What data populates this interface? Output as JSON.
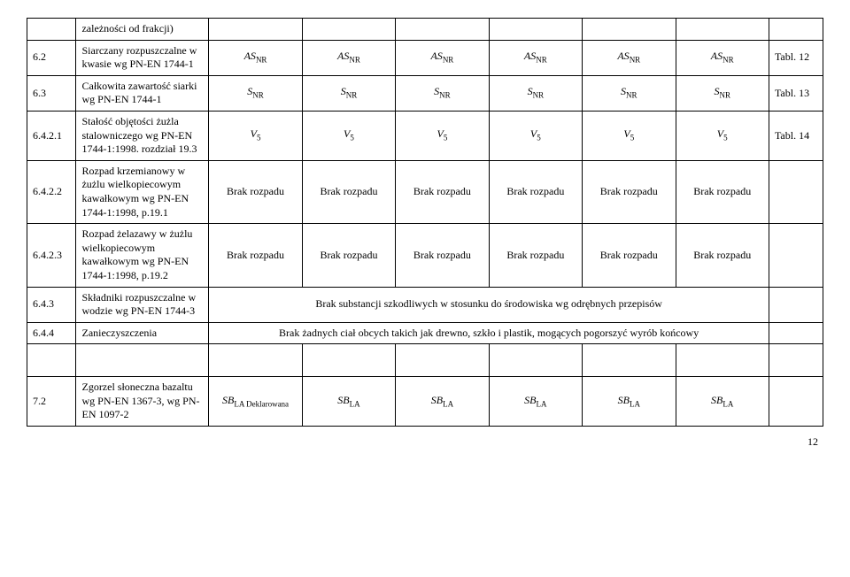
{
  "rows": [
    {
      "num": "",
      "desc": "zależności od frakcji)",
      "vals": [
        "",
        "",
        "",
        "",
        "",
        ""
      ],
      "note": ""
    },
    {
      "num": "6.2",
      "desc": "Siarczany rozpuszczalne w kwasie wg PN-EN 1744-1",
      "vals": [
        "AS_NR",
        "AS_NR",
        "AS_NR",
        "AS_NR",
        "AS_NR",
        "AS_NR"
      ],
      "note": "Tabl. 12"
    },
    {
      "num": "6.3",
      "desc": "Całkowita zawartość siarki wg PN-EN 1744-1",
      "vals": [
        "S_NR",
        "S_NR",
        "S_NR",
        "S_NR",
        "S_NR",
        "S_NR"
      ],
      "note": "Tabl. 13"
    },
    {
      "num": "6.4.2.1",
      "desc": "Stałość objętości żużla stalowniczego wg PN-EN 1744-1:1998. rozdział 19.3",
      "vals": [
        "V_5",
        "V_5",
        "V_5",
        "V_5",
        "V_5",
        "V_5"
      ],
      "note": "Tabl. 14"
    },
    {
      "num": "6.4.2.2",
      "desc": "Rozpad krzemianowy w żużlu wielkopiecowym kawałkowym wg PN-EN 1744-1:1998, p.19.1",
      "vals": [
        "Brak rozpadu",
        "Brak rozpadu",
        "Brak rozpadu",
        "Brak rozpadu",
        "Brak rozpadu",
        "Brak rozpadu"
      ],
      "note": ""
    },
    {
      "num": "6.4.2.3",
      "desc": "Rozpad żelazawy w żużlu wielkopiecowym kawałkowym wg PN-EN 1744-1:1998, p.19.2",
      "vals": [
        "Brak rozpadu",
        "Brak rozpadu",
        "Brak rozpadu",
        "Brak rozpadu",
        "Brak rozpadu",
        "Brak rozpadu"
      ],
      "note": ""
    },
    {
      "num": "6.4.3",
      "desc": "Składniki rozpuszczalne w wodzie wg PN-EN 1744-3",
      "merged": "Brak substancji szkodliwych w stosunku do środowiska wg odrębnych przepisów",
      "note": ""
    },
    {
      "num": "6.4.4",
      "desc": "Zanieczyszczenia",
      "merged": "Brak żadnych ciał obcych takich jak drewno, szkło i plastik, mogących pogorszyć wyrób końcowy",
      "note": ""
    },
    {
      "num": "7.2",
      "desc": "Zgorzel słoneczna bazaltu wg PN-EN 1367-3, wg PN-EN 1097-2",
      "vals": [
        "SB_LA Deklarowana",
        "SB_LA",
        "SB_LA",
        "SB_LA",
        "SB_LA",
        "SB_LA"
      ],
      "note": ""
    }
  ],
  "pageNumber": "12"
}
